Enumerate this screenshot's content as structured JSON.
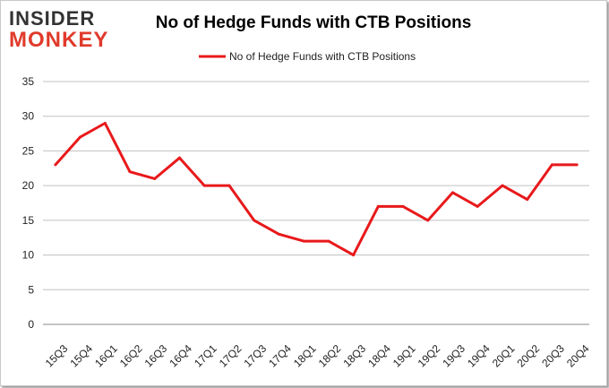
{
  "logo": {
    "line1": "INSIDER",
    "line2": "MONKEY"
  },
  "colors": {
    "series": "#e8191b",
    "grid": "#c0c0c0",
    "logo_accent": "#e03a2b"
  },
  "chart_data": {
    "type": "line",
    "title": "No of Hedge Funds with CTB Positions",
    "xlabel": "",
    "ylabel": "",
    "ylim": [
      0,
      35
    ],
    "yticks": [
      0,
      5,
      10,
      15,
      20,
      25,
      30,
      35
    ],
    "grid": true,
    "legend_position": "top-center",
    "categories": [
      "15Q3",
      "15Q4",
      "16Q1",
      "16Q2",
      "16Q3",
      "16Q4",
      "17Q1",
      "17Q2",
      "17Q3",
      "17Q4",
      "18Q1",
      "18Q2",
      "18Q3",
      "18Q4",
      "19Q1",
      "19Q2",
      "19Q3",
      "19Q4",
      "20Q1",
      "20Q2",
      "20Q3",
      "20Q4"
    ],
    "series": [
      {
        "name": "No of Hedge Funds with CTB Positions",
        "values": [
          23,
          27,
          29,
          22,
          21,
          24,
          20,
          20,
          15,
          13,
          12,
          12,
          10,
          17,
          17,
          15,
          19,
          17,
          20,
          18,
          23,
          23
        ]
      }
    ]
  }
}
